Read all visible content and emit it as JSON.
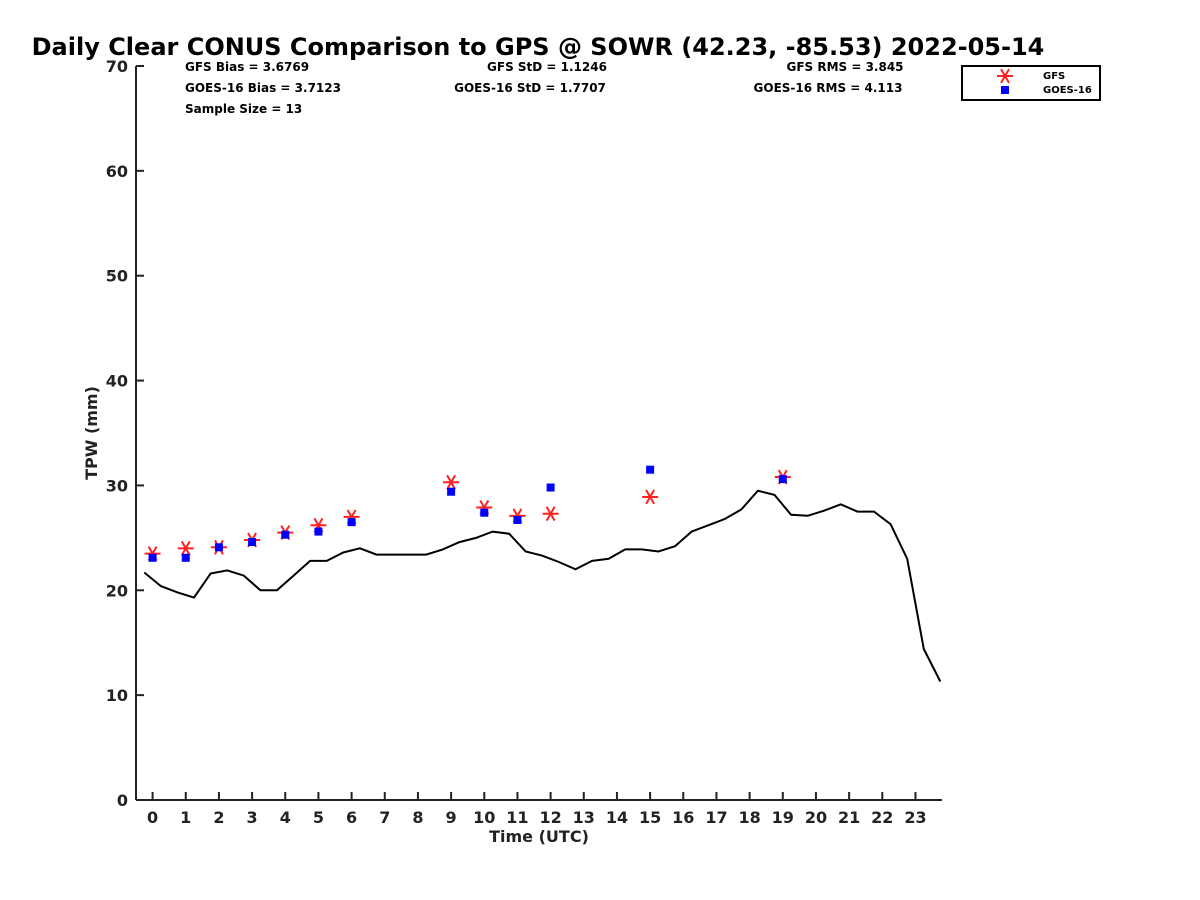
{
  "chart_data": {
    "type": "scatter",
    "title": "Daily Clear CONUS Comparison to GPS @ SOWR (42.23, -85.53) 2022-05-14",
    "xlabel": "Time (UTC)",
    "ylabel": "TPW (mm)",
    "xlim": [
      -0.5,
      23.8
    ],
    "ylim": [
      0,
      70
    ],
    "xticks": [
      0,
      1,
      2,
      3,
      4,
      5,
      6,
      7,
      8,
      9,
      10,
      11,
      12,
      13,
      14,
      15,
      16,
      17,
      18,
      19,
      20,
      21,
      22,
      23
    ],
    "yticks": [
      0,
      10,
      20,
      30,
      40,
      50,
      60,
      70
    ],
    "grid": false,
    "legend_position": "top-right",
    "stats": {
      "gfs_bias": "GFS Bias = 3.6769",
      "goes_bias": "GOES-16 Bias = 3.7123",
      "sample_size": "Sample Size = 13",
      "gfs_std": "GFS StD = 1.1246",
      "goes_std": "GOES-16 StD = 1.7707",
      "gfs_rms": "GFS RMS = 3.845",
      "goes_rms": "GOES-16 RMS = 4.113"
    },
    "series": [
      {
        "name": "GPS",
        "type": "line",
        "color": "#000000",
        "x": [
          -0.25,
          0.25,
          0.75,
          1.25,
          1.75,
          2.25,
          2.75,
          3.25,
          3.75,
          4.25,
          4.75,
          5.25,
          5.75,
          6.25,
          6.75,
          7.25,
          7.75,
          8.25,
          8.75,
          9.25,
          9.75,
          10.25,
          10.75,
          11.25,
          11.75,
          12.25,
          12.75,
          13.25,
          13.75,
          14.25,
          14.75,
          15.25,
          15.75,
          16.25,
          16.75,
          17.25,
          17.75,
          18.25,
          18.75,
          19.25,
          19.75,
          20.25,
          20.75,
          21.25,
          21.75,
          22.25,
          22.75,
          23.25,
          23.75
        ],
        "y": [
          21.7,
          20.4,
          19.8,
          19.3,
          21.6,
          21.9,
          21.4,
          20.0,
          20.0,
          21.4,
          22.8,
          22.8,
          23.6,
          24.0,
          23.4,
          23.4,
          23.4,
          23.4,
          23.9,
          24.6,
          25.0,
          25.6,
          25.4,
          23.7,
          23.3,
          22.7,
          22.0,
          22.8,
          23.0,
          23.9,
          23.9,
          23.7,
          24.2,
          25.6,
          26.2,
          26.8,
          27.7,
          29.5,
          29.1,
          27.2,
          27.1,
          27.6,
          28.2,
          27.5,
          27.5,
          26.3,
          23.0,
          14.4,
          11.3
        ]
      },
      {
        "name": "GFS",
        "type": "scatter",
        "marker": "asterisk",
        "color": "#ff2020",
        "x": [
          0,
          1,
          2,
          3,
          4,
          5,
          6,
          9,
          10,
          11,
          12,
          15,
          19
        ],
        "y": [
          23.5,
          24.0,
          24.1,
          24.8,
          25.5,
          26.2,
          27.0,
          30.3,
          27.9,
          27.1,
          27.3,
          28.9,
          30.8
        ]
      },
      {
        "name": "GOES-16",
        "type": "scatter",
        "marker": "square",
        "color": "#0000ff",
        "x": [
          0,
          1,
          2,
          3,
          4,
          5,
          6,
          9,
          10,
          11,
          12,
          15,
          19
        ],
        "y": [
          23.1,
          23.1,
          24.1,
          24.6,
          25.3,
          25.6,
          26.5,
          29.4,
          27.4,
          26.7,
          29.8,
          31.5,
          30.6
        ]
      }
    ],
    "legend": [
      "GFS",
      "GOES-16"
    ]
  }
}
